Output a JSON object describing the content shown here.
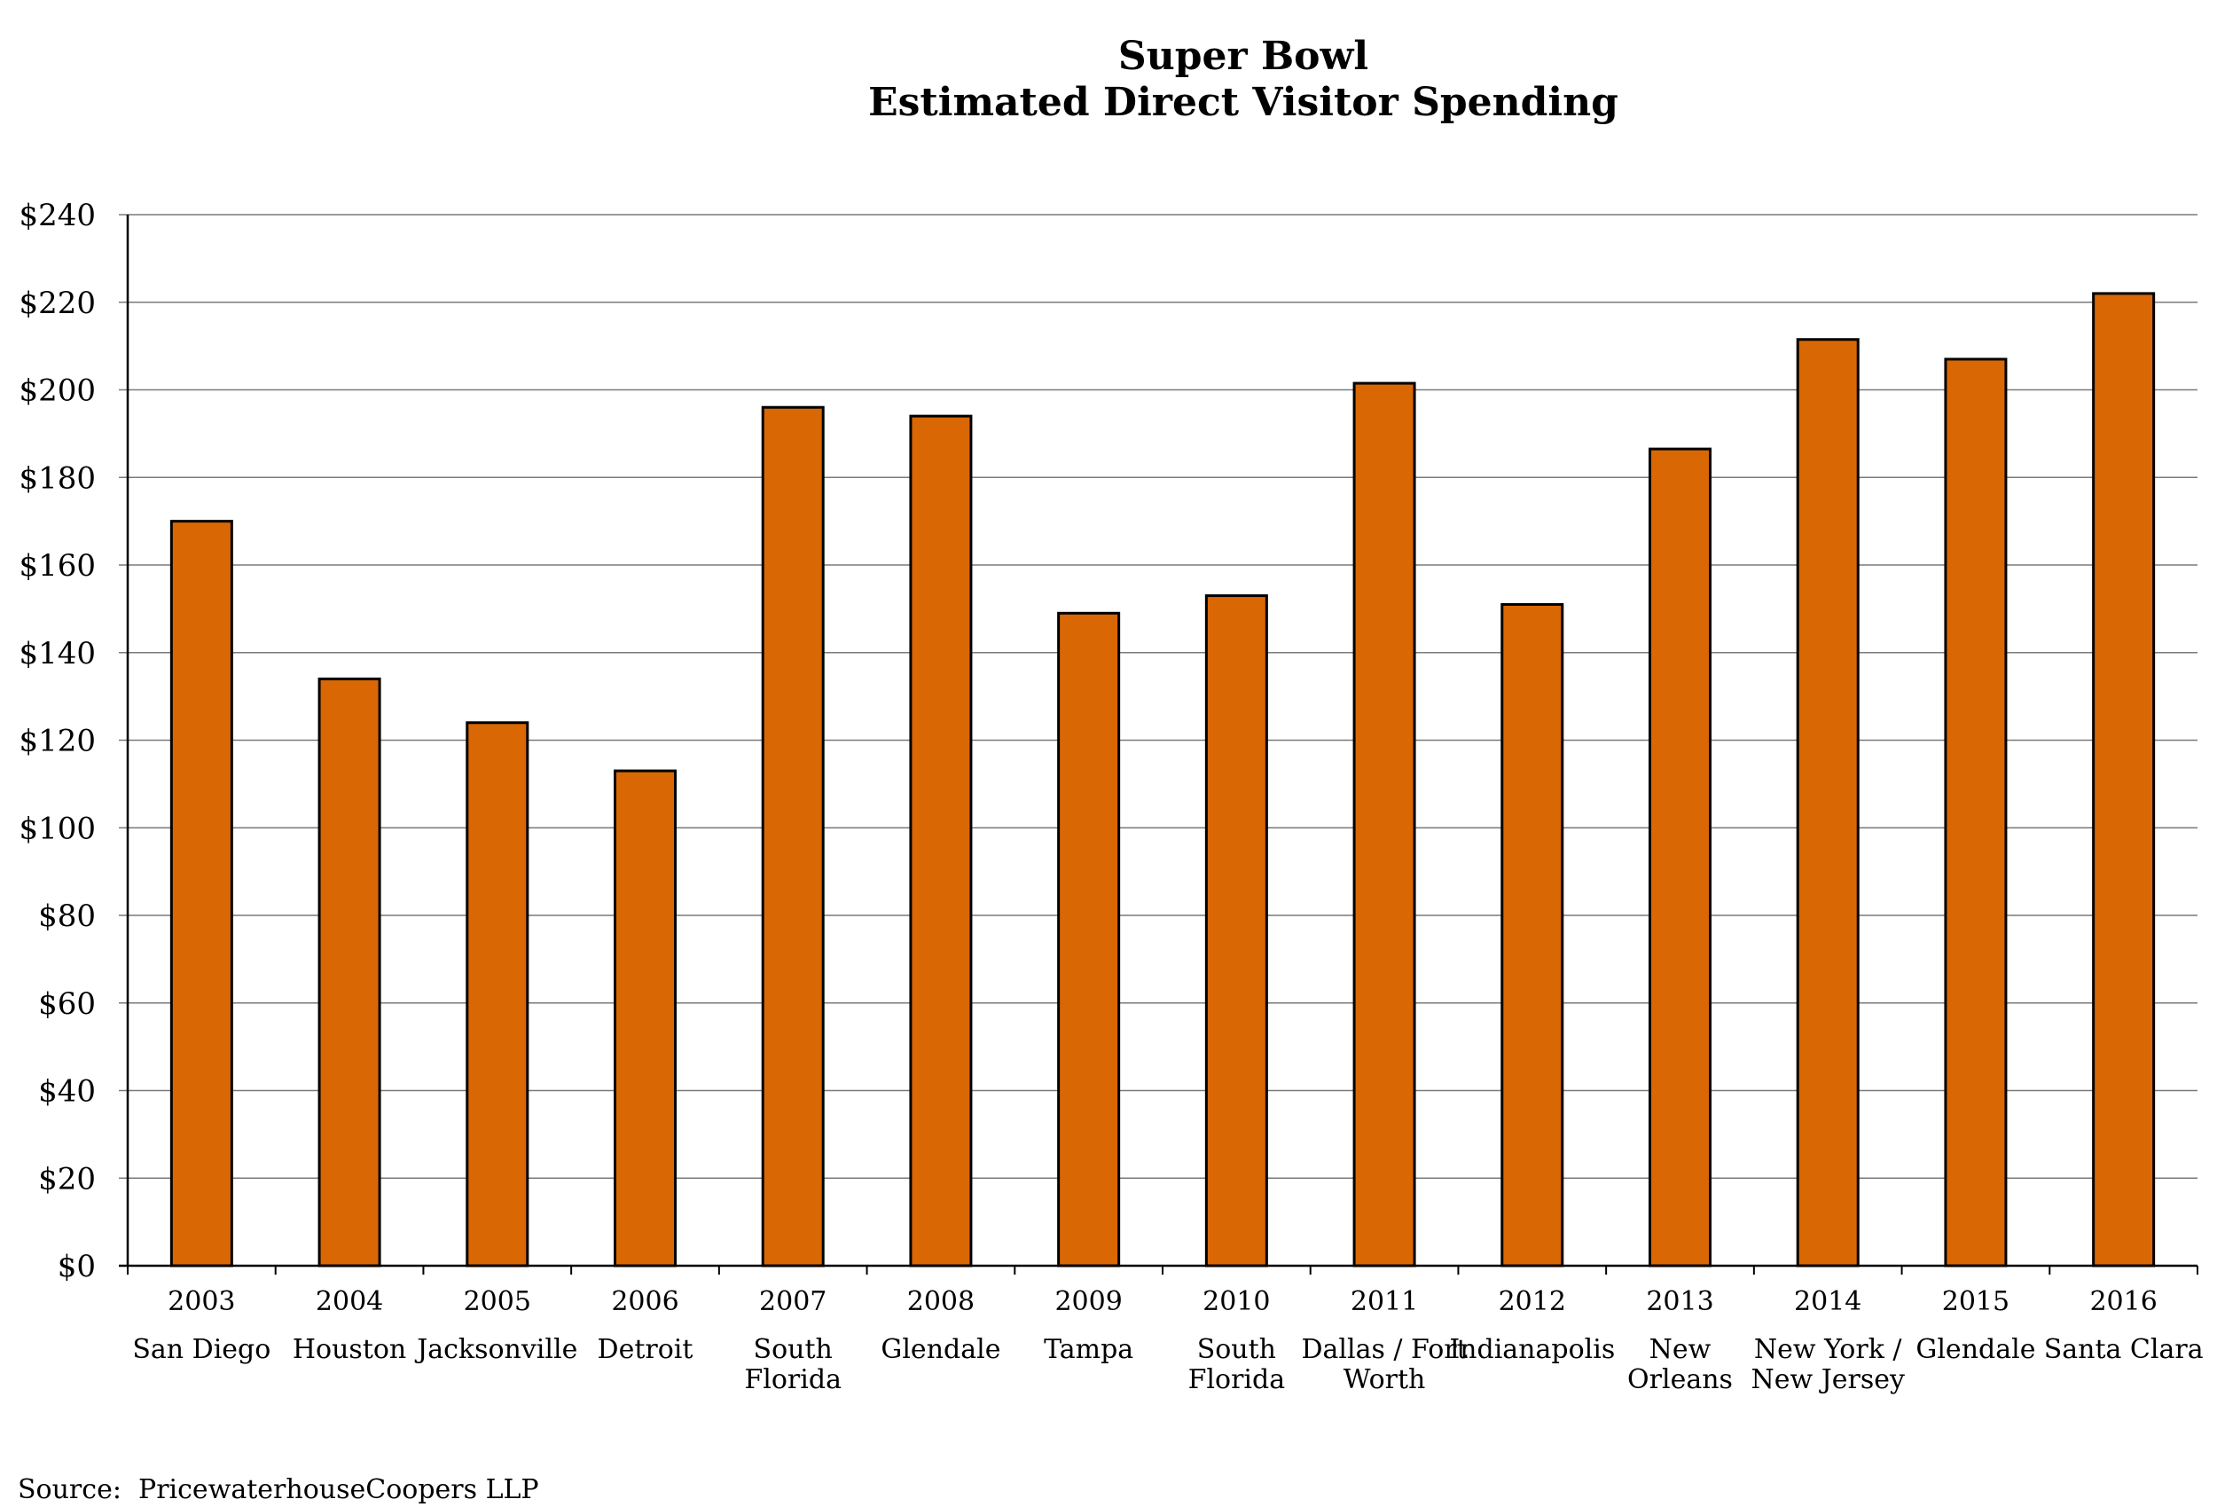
{
  "chart_data": {
    "type": "bar",
    "title": [
      "Super Bowl",
      "Estimated Direct Visitor Spending"
    ],
    "xlabel": "",
    "ylabel": "",
    "ylim": [
      0,
      240
    ],
    "ytick_step": 20,
    "ytick_labels": [
      "$0",
      "$20",
      "$40",
      "$60",
      "$80",
      "$100",
      "$120",
      "$140",
      "$160",
      "$180",
      "$200",
      "$220",
      "$240"
    ],
    "grid": true,
    "legend": "none",
    "bar_color": "#D96704",
    "bar_edge_color": "#000000",
    "categories": [
      {
        "year": "2003",
        "city": [
          "San Diego"
        ]
      },
      {
        "year": "2004",
        "city": [
          "Houston"
        ]
      },
      {
        "year": "2005",
        "city": [
          "Jacksonville"
        ]
      },
      {
        "year": "2006",
        "city": [
          "Detroit"
        ]
      },
      {
        "year": "2007",
        "city": [
          "South",
          "Florida"
        ]
      },
      {
        "year": "2008",
        "city": [
          "Glendale"
        ]
      },
      {
        "year": "2009",
        "city": [
          "Tampa"
        ]
      },
      {
        "year": "2010",
        "city": [
          "South",
          "Florida"
        ]
      },
      {
        "year": "2011",
        "city": [
          "Dallas / Fort",
          "Worth"
        ]
      },
      {
        "year": "2012",
        "city": [
          "Indianapolis"
        ]
      },
      {
        "year": "2013",
        "city": [
          "New",
          "Orleans"
        ]
      },
      {
        "year": "2014",
        "city": [
          "New York /",
          "New Jersey"
        ]
      },
      {
        "year": "2015",
        "city": [
          "Glendale"
        ]
      },
      {
        "year": "2016",
        "city": [
          "Santa Clara"
        ]
      }
    ],
    "values": [
      170,
      134,
      124,
      113,
      196,
      194,
      149,
      153,
      201.5,
      151,
      186.5,
      211.5,
      207,
      222
    ]
  },
  "source": "Source:  PricewaterhouseCoopers LLP"
}
